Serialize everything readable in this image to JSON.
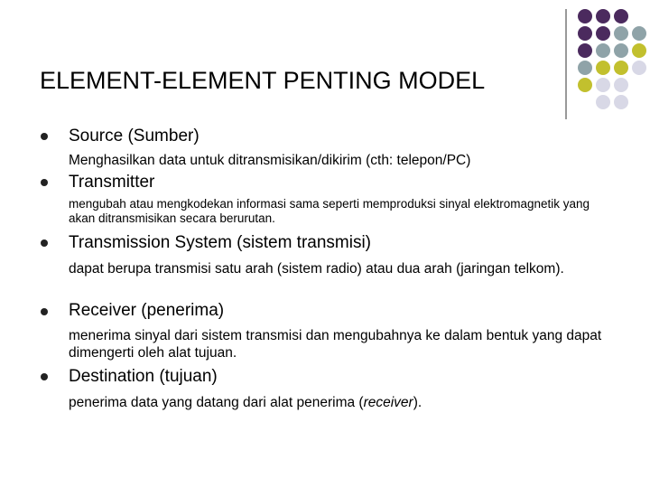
{
  "slide": {
    "title": "ELEMENT-ELEMENT PENTING MODEL",
    "items": [
      {
        "heading": "Source (Sumber)",
        "description": "Menghasilkan data untuk ditransmisikan/dikirim (cth: telepon/PC)"
      },
      {
        "heading": "Transmitter",
        "description": "mengubah atau mengkodekan informasi sama seperti memproduksi sinyal elektromagnetik yang akan ditransmisikan secara berurutan."
      },
      {
        "heading": "Transmission System (sistem transmisi)",
        "description": "dapat berupa transmisi satu arah (sistem radio) atau dua arah (jaringan telkom)."
      },
      {
        "heading": "Receiver (penerima)",
        "description": "menerima sinyal dari sistem transmisi dan mengubahnya ke dalam bentuk yang dapat dimengerti oleh alat tujuan."
      },
      {
        "heading": "Destination (tujuan)",
        "description_parts": [
          "penerima data yang datang dari alat penerima (",
          "receiver",
          ")."
        ]
      }
    ]
  }
}
